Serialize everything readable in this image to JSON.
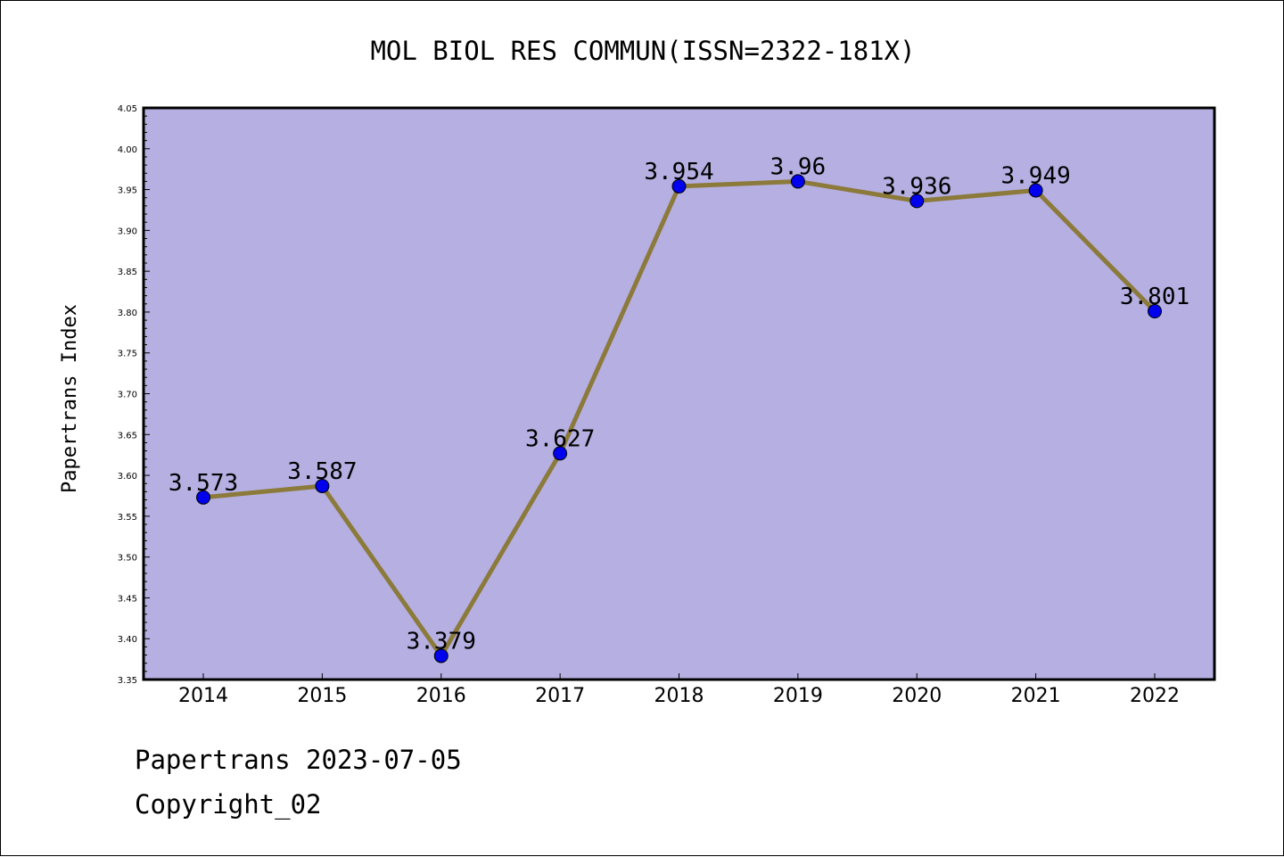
{
  "chart_data": {
    "type": "line",
    "title": "MOL BIOL RES COMMUN(ISSN=2322-181X)",
    "xlabel": "",
    "ylabel": "Papertrans Index",
    "categories": [
      "2014",
      "2015",
      "2016",
      "2017",
      "2018",
      "2019",
      "2020",
      "2021",
      "2022"
    ],
    "values": [
      3.573,
      3.587,
      3.379,
      3.627,
      3.954,
      3.96,
      3.936,
      3.949,
      3.801
    ],
    "data_labels": [
      "3.573",
      "3.587",
      "3.379",
      "3.627",
      "3.954",
      "3.96",
      "3.936",
      "3.949",
      "3.801"
    ],
    "ylim": [
      3.35,
      4.05
    ],
    "yticks": [
      "3.35",
      "3.40",
      "3.45",
      "3.50",
      "3.55",
      "3.60",
      "3.65",
      "3.70",
      "3.75",
      "3.80",
      "3.85",
      "3.90",
      "3.95",
      "4.00",
      "4.05"
    ],
    "grid": false,
    "legend": "none",
    "colors": {
      "plot_background": "#b5afe2",
      "line": "#8b7a3a",
      "marker": "#0000ee",
      "axis": "#000000"
    }
  },
  "footer": {
    "line1": "Papertrans 2023-07-05",
    "line2": "Copyright_02"
  }
}
